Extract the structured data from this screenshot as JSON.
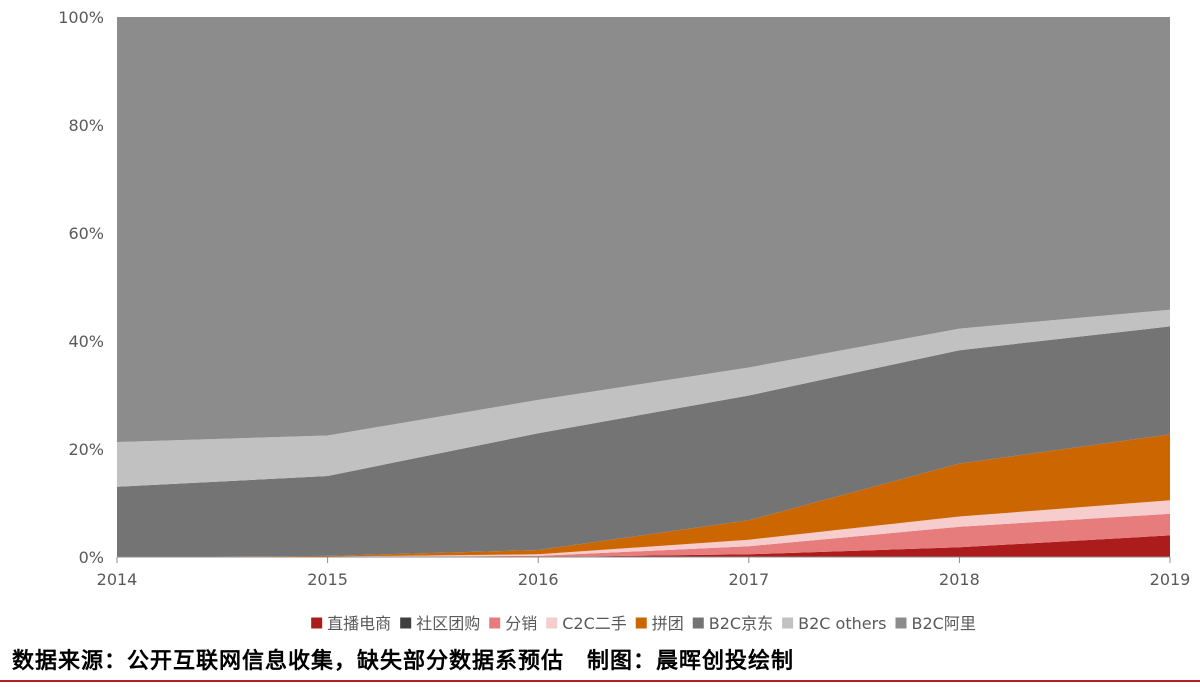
{
  "chart_data": {
    "type": "area",
    "stacked": true,
    "normalized": true,
    "x": [
      "2014",
      "2015",
      "2016",
      "2017",
      "2018",
      "2019"
    ],
    "ylim": [
      0,
      100
    ],
    "y_ticks": [
      "0%",
      "20%",
      "40%",
      "60%",
      "80%",
      "100%"
    ],
    "grid": false,
    "legend_position": "bottom",
    "series": [
      {
        "name": "直播电商",
        "color": "#ad1c1c",
        "values": [
          0,
          0,
          0,
          0.5,
          1.8,
          4.0
        ]
      },
      {
        "name": "社区团购",
        "color": "#3f3f3f",
        "values": [
          0,
          0,
          0,
          0,
          0,
          0
        ]
      },
      {
        "name": "分销",
        "color": "#e77c7c",
        "values": [
          0,
          0,
          0.2,
          1.5,
          3.8,
          4.0
        ]
      },
      {
        "name": "C2C二手",
        "color": "#f7cccc",
        "values": [
          0,
          0.1,
          0.3,
          1.2,
          1.9,
          2.5
        ]
      },
      {
        "name": "拼团",
        "color": "#cc6600",
        "values": [
          0,
          0.1,
          0.8,
          3.6,
          9.8,
          12.2
        ]
      },
      {
        "name": "B2C京东",
        "color": "#747474",
        "values": [
          13.0,
          14.8,
          21.6,
          23.1,
          21.0,
          20.0
        ]
      },
      {
        "name": "B2C others",
        "color": "#c1c1c1",
        "values": [
          8.3,
          7.5,
          6.2,
          5.2,
          4.0,
          3.1
        ]
      },
      {
        "name": "B2C阿里",
        "color": "#8c8c8c",
        "values": [
          78.7,
          77.5,
          70.9,
          64.9,
          57.7,
          54.2
        ]
      }
    ]
  },
  "source_note": "数据来源：公开互联网信息收集，缺失部分数据系预估　制图：晨晖创投绘制"
}
